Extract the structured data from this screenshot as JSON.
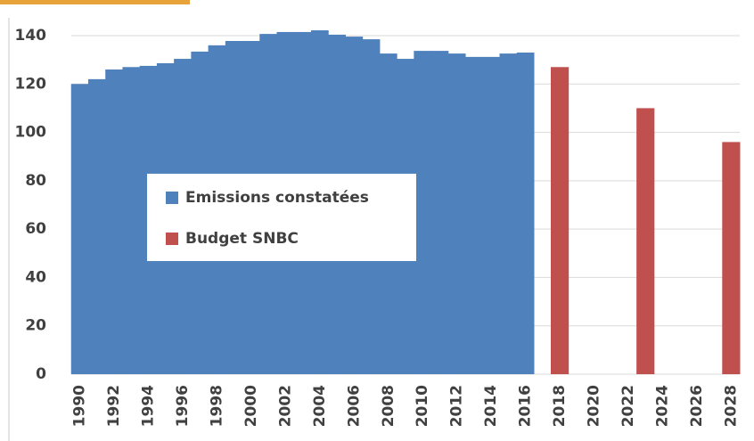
{
  "chart_data": {
    "type": "bar",
    "categories": [
      "1990",
      null,
      "1992",
      null,
      "1994",
      null,
      "1996",
      null,
      "1998",
      null,
      "2000",
      null,
      "2002",
      null,
      "2004",
      null,
      "2006",
      null,
      "2008",
      null,
      "2010",
      null,
      "2012",
      null,
      "2014",
      null,
      "2016",
      null,
      "2018",
      null,
      "2020",
      null,
      "2022",
      null,
      "2024",
      null,
      "2026",
      null,
      "2028"
    ],
    "series": [
      {
        "name": "Emissions constatées",
        "color": "#4f81bd",
        "values": [
          120,
          122,
          126,
          127,
          127.5,
          128.6,
          130.4,
          133.4,
          136,
          137.8,
          137.8,
          140.7,
          141.5,
          141.5,
          142.2,
          140.4,
          139.6,
          138.5,
          132.6,
          130.4,
          133.7,
          133.7,
          132.6,
          131.2,
          131.2,
          132.6,
          133,
          null,
          null,
          null,
          null,
          null,
          null,
          null,
          null,
          null,
          null,
          null,
          null
        ]
      },
      {
        "name": "Budget SNBC",
        "color": "#c0504d",
        "values": [
          null,
          null,
          null,
          null,
          null,
          null,
          null,
          null,
          null,
          null,
          null,
          null,
          null,
          null,
          null,
          null,
          null,
          null,
          null,
          null,
          null,
          null,
          null,
          null,
          null,
          null,
          null,
          null,
          127,
          null,
          null,
          null,
          null,
          110,
          null,
          null,
          null,
          null,
          96
        ]
      }
    ],
    "ylim": [
      0,
      140
    ],
    "yticks": [
      0,
      20,
      40,
      60,
      80,
      100,
      120,
      140
    ],
    "grid": true,
    "legend": "center-left"
  }
}
